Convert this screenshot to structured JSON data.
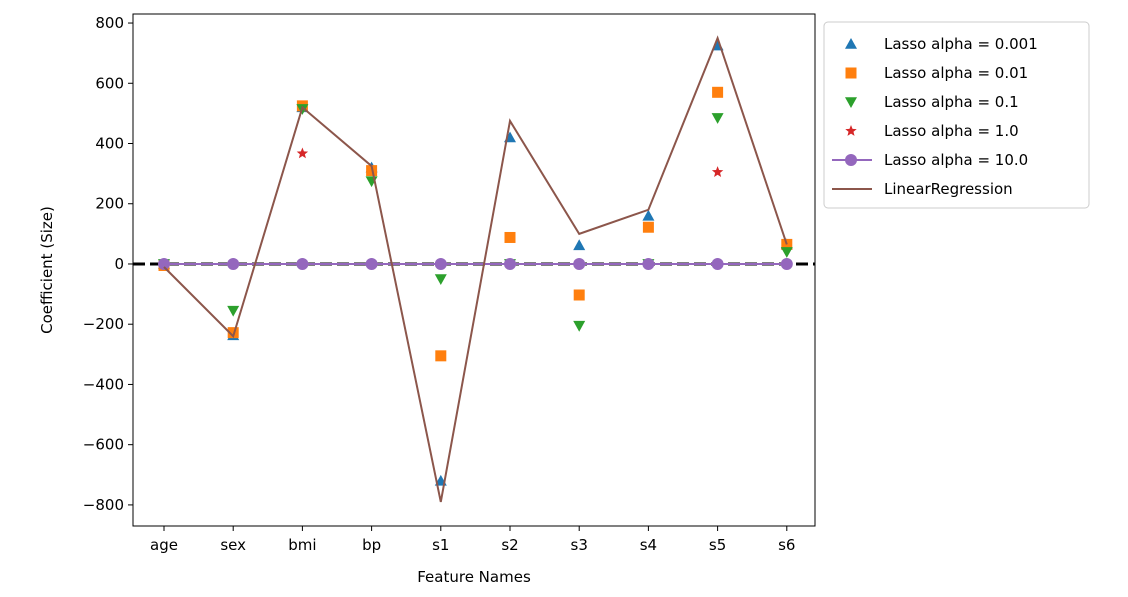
{
  "chart_data": {
    "type": "scatter",
    "title": "",
    "xlabel": "Feature Names",
    "ylabel": "Coefficient (Size)",
    "categories": [
      "age",
      "sex",
      "bmi",
      "bp",
      "s1",
      "s2",
      "s3",
      "s4",
      "s5",
      "s6"
    ],
    "ylim": [
      -870,
      830
    ],
    "yticks": [
      -800,
      -600,
      -400,
      -200,
      0,
      200,
      400,
      600,
      800
    ],
    "ytick_labels": [
      "−800",
      "−600",
      "−400",
      "−200",
      "0",
      "200",
      "400",
      "600",
      "800"
    ],
    "grid": false,
    "legend_position": "outside-top-right",
    "zero_line": {
      "value": 0,
      "style": "dashed",
      "color": "#000000"
    },
    "series": [
      {
        "name": "Lasso alpha = 0.001",
        "marker": "triangle-up",
        "line": false,
        "color": "#1f77b4",
        "values": [
          0,
          -237,
          520,
          320,
          -720,
          420,
          62,
          160,
          725,
          65
        ]
      },
      {
        "name": "Lasso alpha = 0.01",
        "marker": "square",
        "line": false,
        "color": "#ff7f0e",
        "values": [
          -5,
          -228,
          525,
          310,
          -305,
          88,
          -103,
          122,
          570,
          65
        ]
      },
      {
        "name": "Lasso alpha = 0.1",
        "marker": "triangle-down",
        "line": false,
        "color": "#2ca02c",
        "values": [
          0,
          -155,
          515,
          275,
          -50,
          0,
          -205,
          0,
          485,
          40
        ]
      },
      {
        "name": "Lasso alpha = 1.0",
        "marker": "star",
        "line": false,
        "color": "#d62728",
        "values": [
          0,
          0,
          367,
          0,
          0,
          0,
          0,
          0,
          305,
          0
        ]
      },
      {
        "name": "Lasso alpha = 10.0",
        "marker": "circle",
        "line": true,
        "color": "#9467bd",
        "values": [
          0,
          0,
          0,
          0,
          0,
          0,
          0,
          0,
          0,
          0
        ]
      },
      {
        "name": "LinearRegression",
        "marker": "none",
        "line": true,
        "color": "#8c564b",
        "values": [
          -10,
          -240,
          520,
          325,
          -790,
          475,
          100,
          180,
          750,
          65
        ]
      }
    ]
  }
}
